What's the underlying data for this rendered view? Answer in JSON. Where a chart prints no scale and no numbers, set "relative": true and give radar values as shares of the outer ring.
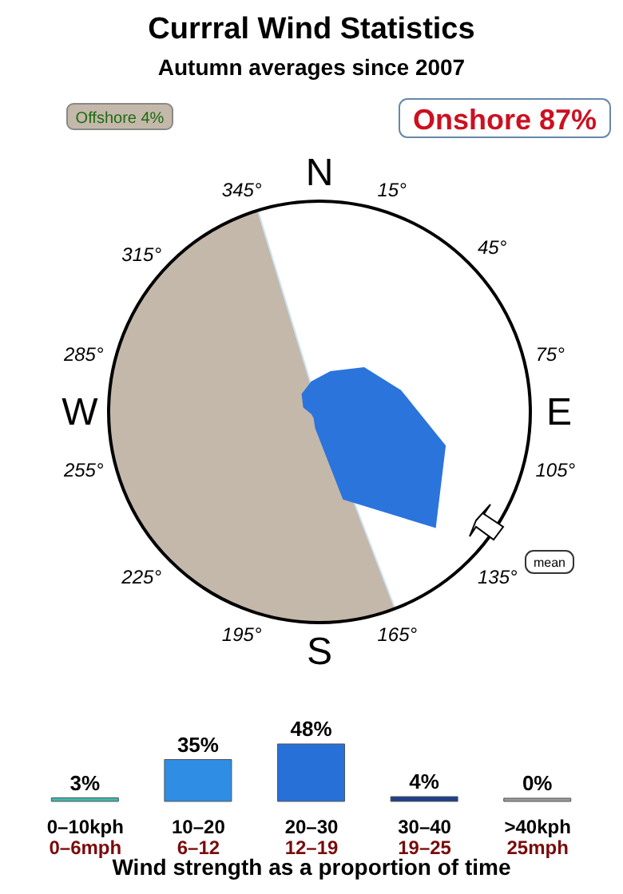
{
  "chart_data": [
    {
      "type": "radar",
      "title": "Currral Wind Statistics",
      "subtitle": "Autumn averages since 2007",
      "categories": [
        "15°",
        "45°",
        "75°",
        "105°",
        "135°",
        "165°",
        "195°",
        "225°",
        "255°",
        "285°",
        "315°",
        "345°"
      ],
      "relative": true,
      "series": [
        {
          "color": "#2a74dc",
          "values": [
            0.2,
            0.3,
            0.4,
            0.62,
            0.78,
            0.43,
            0.08,
            0.04,
            0.04,
            0.08,
            0.12,
            0.15
          ]
        }
      ],
      "annotations": [
        "N",
        "E",
        "S",
        "W",
        "Offshore 4%",
        "Onshore 87%",
        "mean"
      ]
    },
    {
      "type": "bar",
      "categories": [
        "0–10kph\n0–6mph",
        "10–20\n6–12",
        "20–30\n12–19",
        "30–40\n19–25",
        ">40kph\n25mph"
      ],
      "values": [
        3,
        35,
        48,
        4,
        0
      ],
      "colors": [
        "#3fb8b0",
        "#2f8de4",
        "#2770d8",
        "#1f3f8a",
        "#9a9a9a"
      ],
      "value_labels": [
        "3%",
        "35%",
        "48%",
        "4%",
        "0%"
      ],
      "xlabel": "Wind strength as a proportion of time",
      "tick_labels": "x"
    }
  ]
}
